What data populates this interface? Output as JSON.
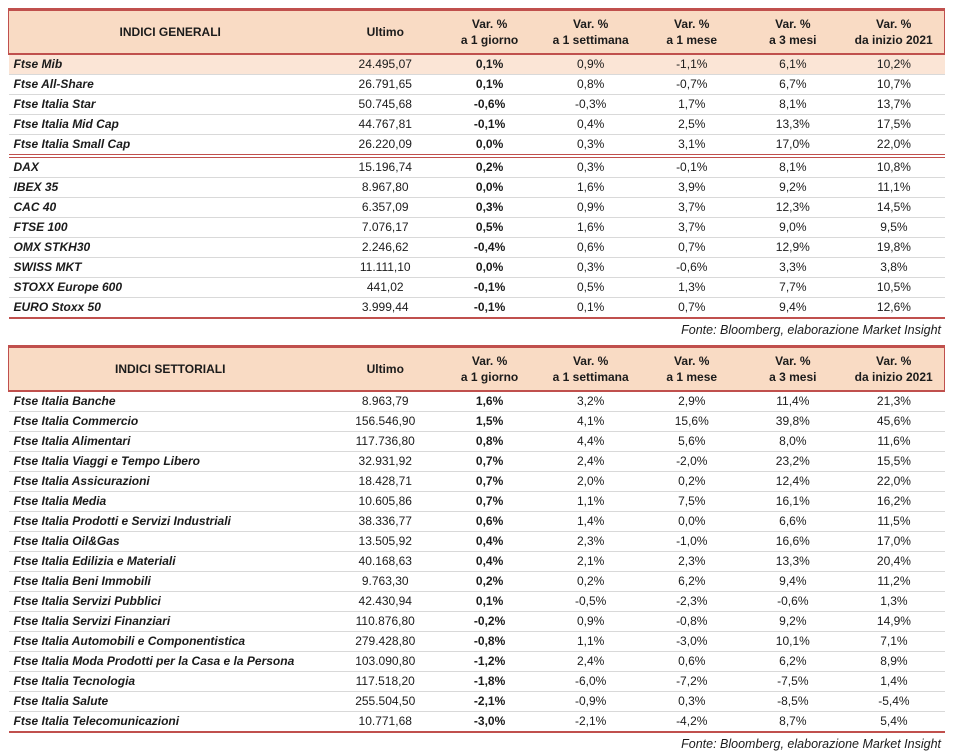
{
  "columns": [
    {
      "line1": "Ultimo",
      "line2": ""
    },
    {
      "line1": "Var. %",
      "line2": "a 1 giorno"
    },
    {
      "line1": "Var. %",
      "line2": "a 1 settimana"
    },
    {
      "line1": "Var. %",
      "line2": "a 1 mese"
    },
    {
      "line1": "Var. %",
      "line2": "a 3 mesi"
    },
    {
      "line1": "Var. %",
      "line2": "da inizio 2021"
    }
  ],
  "source_note": "Fonte: Bloomberg, elaborazione Market Insight",
  "colors": {
    "accent_red": "#C0504D",
    "header_bg": "#F9DBC4",
    "highlight_bg": "#FBE5D6"
  },
  "general": {
    "title": "INDICI GENERALI",
    "rows": [
      {
        "name": "Ftse Mib",
        "values": [
          "24.495,07",
          "0,1%",
          "0,9%",
          "-1,1%",
          "6,1%",
          "10,2%"
        ],
        "highlight": true
      },
      {
        "name": "Ftse All-Share",
        "values": [
          "26.791,65",
          "0,1%",
          "0,8%",
          "-0,7%",
          "6,7%",
          "10,7%"
        ]
      },
      {
        "name": "Ftse Italia Star",
        "values": [
          "50.745,68",
          "-0,6%",
          "-0,3%",
          "1,7%",
          "8,1%",
          "13,7%"
        ]
      },
      {
        "name": "Ftse Italia Mid Cap",
        "values": [
          "44.767,81",
          "-0,1%",
          "0,4%",
          "2,5%",
          "13,3%",
          "17,5%"
        ]
      },
      {
        "name": "Ftse Italia Small Cap",
        "values": [
          "26.220,09",
          "0,0%",
          "0,3%",
          "3,1%",
          "17,0%",
          "22,0%"
        ],
        "divider_after": true
      },
      {
        "name": "DAX",
        "values": [
          "15.196,74",
          "0,2%",
          "0,3%",
          "-0,1%",
          "8,1%",
          "10,8%"
        ]
      },
      {
        "name": "IBEX 35",
        "values": [
          "8.967,80",
          "0,0%",
          "1,6%",
          "3,9%",
          "9,2%",
          "11,1%"
        ]
      },
      {
        "name": "CAC 40",
        "values": [
          "6.357,09",
          "0,3%",
          "0,9%",
          "3,7%",
          "12,3%",
          "14,5%"
        ]
      },
      {
        "name": "FTSE 100",
        "values": [
          "7.076,17",
          "0,5%",
          "1,6%",
          "3,7%",
          "9,0%",
          "9,5%"
        ]
      },
      {
        "name": "OMX STKH30",
        "values": [
          "2.246,62",
          "-0,4%",
          "0,6%",
          "0,7%",
          "12,9%",
          "19,8%"
        ]
      },
      {
        "name": "SWISS MKT",
        "values": [
          "11.111,10",
          "0,0%",
          "0,3%",
          "-0,6%",
          "3,3%",
          "3,8%"
        ]
      },
      {
        "name": "STOXX Europe 600",
        "values": [
          "441,02",
          "-0,1%",
          "0,5%",
          "1,3%",
          "7,7%",
          "10,5%"
        ]
      },
      {
        "name": "EURO Stoxx 50",
        "values": [
          "3.999,44",
          "-0,1%",
          "0,1%",
          "0,7%",
          "9,4%",
          "12,6%"
        ]
      }
    ]
  },
  "sector": {
    "title": "INDICI SETTORIALI",
    "rows": [
      {
        "name": "Ftse Italia Banche",
        "values": [
          "8.963,79",
          "1,6%",
          "3,2%",
          "2,9%",
          "11,4%",
          "21,3%"
        ]
      },
      {
        "name": "Ftse Italia Commercio",
        "values": [
          "156.546,90",
          "1,5%",
          "4,1%",
          "15,6%",
          "39,8%",
          "45,6%"
        ]
      },
      {
        "name": "Ftse Italia Alimentari",
        "values": [
          "117.736,80",
          "0,8%",
          "4,4%",
          "5,6%",
          "8,0%",
          "11,6%"
        ]
      },
      {
        "name": "Ftse Italia Viaggi e Tempo Libero",
        "values": [
          "32.931,92",
          "0,7%",
          "2,4%",
          "-2,0%",
          "23,2%",
          "15,5%"
        ]
      },
      {
        "name": "Ftse Italia Assicurazioni",
        "values": [
          "18.428,71",
          "0,7%",
          "2,0%",
          "0,2%",
          "12,4%",
          "22,0%"
        ]
      },
      {
        "name": "Ftse Italia Media",
        "values": [
          "10.605,86",
          "0,7%",
          "1,1%",
          "7,5%",
          "16,1%",
          "16,2%"
        ]
      },
      {
        "name": "Ftse Italia Prodotti e Servizi Industriali",
        "values": [
          "38.336,77",
          "0,6%",
          "1,4%",
          "0,0%",
          "6,6%",
          "11,5%"
        ]
      },
      {
        "name": "Ftse Italia Oil&Gas",
        "values": [
          "13.505,92",
          "0,4%",
          "2,3%",
          "-1,0%",
          "16,6%",
          "17,0%"
        ]
      },
      {
        "name": "Ftse Italia Edilizia e Materiali",
        "values": [
          "40.168,63",
          "0,4%",
          "2,1%",
          "2,3%",
          "13,3%",
          "20,4%"
        ]
      },
      {
        "name": "Ftse Italia Beni Immobili",
        "values": [
          "9.763,30",
          "0,2%",
          "0,2%",
          "6,2%",
          "9,4%",
          "11,2%"
        ]
      },
      {
        "name": "Ftse Italia Servizi Pubblici",
        "values": [
          "42.430,94",
          "0,1%",
          "-0,5%",
          "-2,3%",
          "-0,6%",
          "1,3%"
        ]
      },
      {
        "name": "Ftse Italia Servizi Finanziari",
        "values": [
          "110.876,80",
          "-0,2%",
          "0,9%",
          "-0,8%",
          "9,2%",
          "14,9%"
        ]
      },
      {
        "name": "Ftse Italia Automobili e Componentistica",
        "values": [
          "279.428,80",
          "-0,8%",
          "1,1%",
          "-3,0%",
          "10,1%",
          "7,1%"
        ]
      },
      {
        "name": "Ftse Italia Moda Prodotti per la Casa e la Persona",
        "values": [
          "103.090,80",
          "-1,2%",
          "2,4%",
          "0,6%",
          "6,2%",
          "8,9%"
        ]
      },
      {
        "name": "Ftse Italia Tecnologia",
        "values": [
          "117.518,20",
          "-1,8%",
          "-6,0%",
          "-7,2%",
          "-7,5%",
          "1,4%"
        ]
      },
      {
        "name": "Ftse Italia Salute",
        "values": [
          "255.504,50",
          "-2,1%",
          "-0,9%",
          "0,3%",
          "-8,5%",
          "-5,4%"
        ]
      },
      {
        "name": "Ftse Italia Telecomunicazioni",
        "values": [
          "10.771,68",
          "-3,0%",
          "-2,1%",
          "-4,2%",
          "8,7%",
          "5,4%"
        ]
      }
    ]
  }
}
